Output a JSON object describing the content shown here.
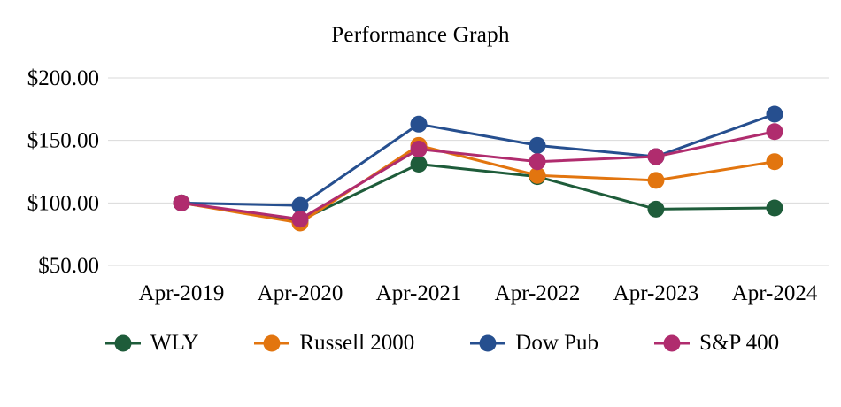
{
  "chart_data": {
    "type": "line",
    "title": "Performance Graph",
    "categories": [
      "Apr-2019",
      "Apr-2020",
      "Apr-2021",
      "Apr-2022",
      "Apr-2023",
      "Apr-2024"
    ],
    "series": [
      {
        "name": "WLY",
        "color": "#1e5c3a",
        "values": [
          100,
          86,
          131,
          121,
          95,
          96
        ]
      },
      {
        "name": "Russell 2000",
        "color": "#e2750f",
        "values": [
          100,
          84,
          146,
          122,
          118,
          133
        ]
      },
      {
        "name": "Dow Pub",
        "color": "#264f8f",
        "values": [
          100,
          98,
          163,
          146,
          137,
          171
        ]
      },
      {
        "name": "S&P 400",
        "color": "#b02c6e",
        "values": [
          100,
          87,
          143,
          133,
          137,
          157
        ]
      }
    ],
    "ylim": [
      50,
      200
    ],
    "yticks": [
      50,
      100,
      150,
      200
    ],
    "ytick_labels": [
      "$50.00",
      "$100.00",
      "$150.00",
      "$200.00"
    ],
    "grid": "horizontal",
    "gridline_color": "#d9d9d9",
    "legend_position": "bottom",
    "marker": "circle",
    "marker_radius": 9.5,
    "line_width": 3
  }
}
